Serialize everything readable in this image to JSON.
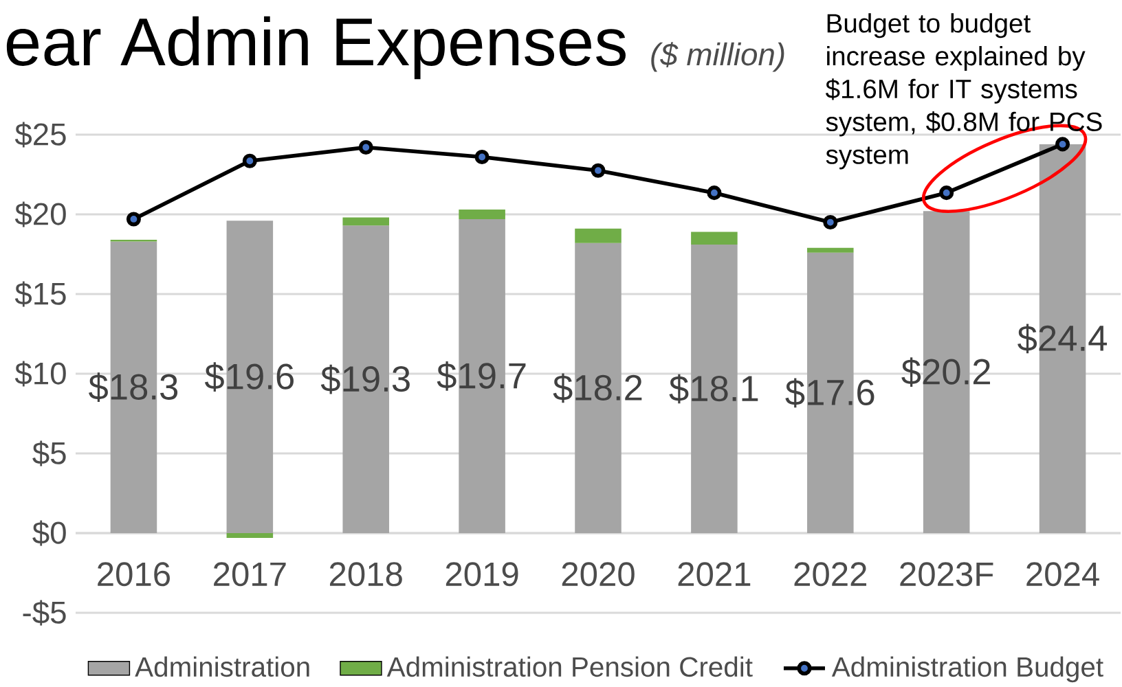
{
  "chart_data": {
    "type": "bar",
    "stacked": true,
    "title": "ear Admin Expenses",
    "subtitle": "*($ million)*",
    "categories": [
      "2016",
      "2017",
      "2018",
      "2019",
      "2020",
      "2021",
      "2022",
      "2023F",
      "2024"
    ],
    "series": [
      {
        "name": "Administration",
        "color": "#a5a5a5",
        "values": [
          18.3,
          19.6,
          19.3,
          19.7,
          18.2,
          18.1,
          17.6,
          20.2,
          24.4
        ],
        "value_labels": [
          "$18.3",
          "$19.6",
          "$19.3",
          "$19.7",
          "$18.2",
          "$18.1",
          "$17.6",
          "$20.2",
          "$24.4"
        ]
      },
      {
        "name": "Administration Pension Credit",
        "color": "#70ad47",
        "values": [
          0.1,
          -0.3,
          0.5,
          0.6,
          0.9,
          0.8,
          0.3,
          null,
          null
        ]
      },
      {
        "name": "Administration Budget",
        "type": "line",
        "color": "#000000",
        "marker": "circle",
        "values": [
          19.7,
          23.35,
          24.2,
          23.6,
          22.75,
          21.35,
          19.5,
          21.35,
          24.4
        ]
      }
    ],
    "ylim": [
      -5,
      25
    ],
    "yticks": [
      {
        "value": -5,
        "label": "-$5"
      },
      {
        "value": 0,
        "label": "$0"
      },
      {
        "value": 5,
        "label": "$5"
      },
      {
        "value": 10,
        "label": "$10"
      },
      {
        "value": 15,
        "label": "$15"
      },
      {
        "value": 20,
        "label": "$20"
      },
      {
        "value": 25,
        "label": "$25"
      }
    ],
    "grid": "y",
    "legend": "bottom",
    "annotations": [
      {
        "text": "Budget to budget increase explained by $1.6M for IT systems system, $0.8M for PCS system",
        "x": "2024",
        "y": 24.4
      }
    ]
  }
}
